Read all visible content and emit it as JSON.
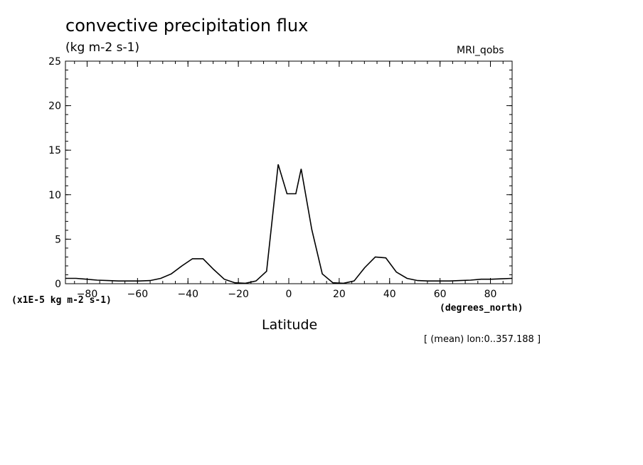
{
  "header": {
    "title": "convective precipitation flux",
    "units": "(kg m-2 s-1)",
    "model": "MRI_qobs"
  },
  "footer": {
    "scale_label": "(x1E-5 kg m-2 s-1)",
    "x_units": "(degrees_north)",
    "x_title": "Latitude",
    "note": "[ (mean) lon:0..357.188 ]"
  },
  "chart_data": {
    "type": "line",
    "title": "convective precipitation flux",
    "xlabel": "Latitude",
    "ylabel": "(kg m-2 s-1)",
    "xlim": [
      -88.6,
      88.6
    ],
    "ylim": [
      0,
      25
    ],
    "xticks": [
      -80,
      -60,
      -40,
      -20,
      0,
      20,
      40,
      60,
      80
    ],
    "yticks": [
      0,
      5,
      10,
      15,
      20,
      25
    ],
    "grid": false,
    "series": [
      {
        "x": [
          -88.6,
          -84.4,
          -80.2,
          -76.0,
          -71.8,
          -67.6,
          -63.4,
          -59.2,
          -55.0,
          -50.8,
          -46.6,
          -42.4,
          -38.2,
          -34.0,
          -29.8,
          -25.6,
          -21.4,
          -17.2,
          -13.0,
          -8.8,
          -4.2,
          -0.7,
          2.8,
          4.9,
          9.1,
          13.3,
          17.5,
          21.7,
          25.9,
          30.1,
          34.3,
          38.5,
          42.7,
          46.9,
          51.1,
          55.3,
          59.5,
          63.7,
          67.9,
          72.1,
          76.3,
          80.5,
          84.7,
          88.6
        ],
        "y": [
          0.6,
          0.6,
          0.5,
          0.4,
          0.35,
          0.3,
          0.3,
          0.3,
          0.35,
          0.6,
          1.1,
          2.0,
          2.8,
          2.8,
          1.6,
          0.5,
          0.1,
          0.05,
          0.3,
          1.4,
          13.4,
          10.1,
          10.1,
          12.9,
          6.1,
          1.1,
          0.1,
          0.05,
          0.3,
          1.8,
          3.0,
          2.9,
          1.3,
          0.6,
          0.35,
          0.3,
          0.3,
          0.3,
          0.35,
          0.4,
          0.5,
          0.5,
          0.55,
          0.6
        ]
      }
    ]
  }
}
